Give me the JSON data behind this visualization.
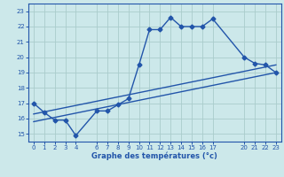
{
  "background_color": "#cce8ea",
  "grid_color": "#aacccc",
  "line_color": "#2255aa",
  "marker": "D",
  "markersize": 2.5,
  "linewidth": 1.0,
  "xlabel": "Graphe des températures (°c)",
  "xlim": [
    -0.5,
    23.5
  ],
  "ylim": [
    14.5,
    23.5
  ],
  "xticks": [
    0,
    1,
    2,
    3,
    4,
    6,
    7,
    8,
    9,
    10,
    11,
    12,
    13,
    14,
    15,
    16,
    17,
    20,
    21,
    22,
    23
  ],
  "yticks": [
    15,
    16,
    17,
    18,
    19,
    20,
    21,
    22,
    23
  ],
  "series": [
    {
      "x": [
        0,
        1,
        2,
        3,
        4,
        6,
        7,
        8,
        9,
        10,
        11,
        12,
        13,
        14,
        15,
        16,
        17,
        20,
        21,
        22,
        23
      ],
      "y": [
        17.0,
        16.4,
        15.9,
        15.9,
        14.9,
        16.5,
        16.5,
        16.9,
        17.3,
        19.5,
        21.8,
        21.8,
        22.6,
        22.0,
        22.0,
        22.0,
        22.5,
        20.0,
        19.6,
        19.5,
        19.0
      ]
    },
    {
      "x": [
        0,
        23
      ],
      "y": [
        15.8,
        19.0
      ]
    },
    {
      "x": [
        0,
        23
      ],
      "y": [
        16.3,
        19.5
      ]
    }
  ]
}
